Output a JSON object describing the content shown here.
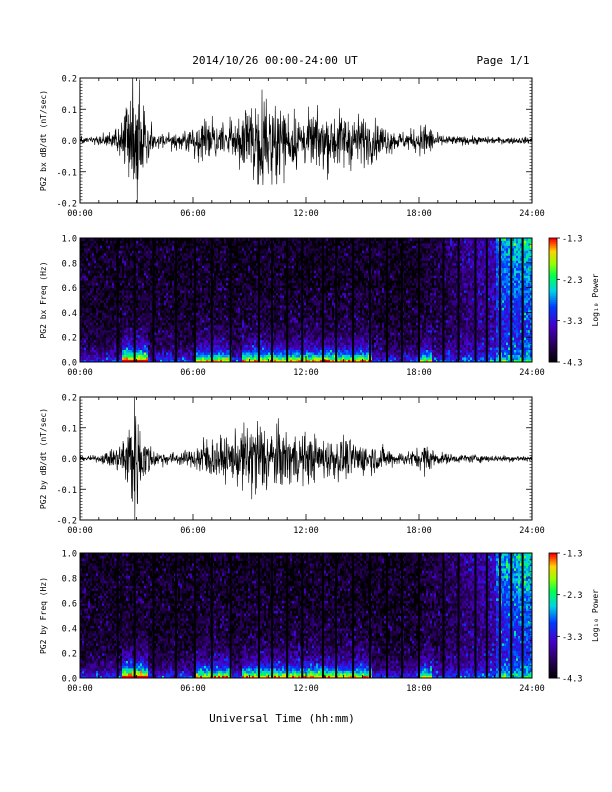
{
  "header": {
    "title": "2014/10/26  00:00-24:00 UT",
    "page": "Page 1/1"
  },
  "footer": {
    "xlabel": "Universal Time (hh:mm)"
  },
  "chart_data": [
    {
      "type": "line",
      "ylabel": "PG2 bx dB/dt (nT/sec)",
      "xlim_hours": [
        0,
        24
      ],
      "ylim": [
        -0.2,
        0.2
      ],
      "x_ticks": [
        "00:00",
        "06:00",
        "12:00",
        "18:00",
        "24:00"
      ],
      "y_ticks": [
        "-0.2",
        "-0.1",
        "0.0",
        "0.1",
        "0.2"
      ],
      "envelope": {
        "hours": [
          0,
          1,
          2,
          2.5,
          2.8,
          3.0,
          3.3,
          4,
          5,
          6,
          6.5,
          7,
          8,
          9,
          9.5,
          10,
          11,
          12,
          13,
          14,
          15,
          16,
          17,
          18,
          18.3,
          19,
          20,
          21,
          22,
          23,
          24
        ],
        "amplitude": [
          0.008,
          0.01,
          0.03,
          0.08,
          0.22,
          0.22,
          0.1,
          0.02,
          0.02,
          0.03,
          0.05,
          0.04,
          0.05,
          0.09,
          0.1,
          0.09,
          0.08,
          0.06,
          0.07,
          0.07,
          0.06,
          0.04,
          0.02,
          0.03,
          0.05,
          0.015,
          0.01,
          0.01,
          0.008,
          0.008,
          0.008
        ]
      }
    },
    {
      "type": "heatmap",
      "ylabel": "PG2 bx Freq (Hz)",
      "xlim_hours": [
        0,
        24
      ],
      "ylim": [
        0,
        1.0
      ],
      "x_ticks": [
        "00:00",
        "06:00",
        "12:00",
        "18:00",
        "24:00"
      ],
      "y_ticks": [
        "0.0",
        "0.2",
        "0.4",
        "0.6",
        "0.8",
        "1.0"
      ],
      "colorbar": {
        "label": "Log₁₀ Power",
        "min": -4.3,
        "max": -1.3,
        "ticks": [
          "-1.3",
          "-2.3",
          "-3.3",
          "-4.3"
        ]
      },
      "gap_hours": [
        2.0,
        2.9,
        3.9,
        5.1,
        6.1,
        7.0,
        8.0,
        9.5,
        10.2,
        11.0,
        11.8,
        12.9,
        13.6,
        14.5,
        15.4,
        16.3,
        17.1,
        18.0,
        19.3,
        20.1,
        21.0,
        21.6,
        22.3,
        22.9,
        23.5
      ]
    },
    {
      "type": "line",
      "ylabel": "PG2 by dB/dt (nT/sec)",
      "xlim_hours": [
        0,
        24
      ],
      "ylim": [
        -0.2,
        0.2
      ],
      "x_ticks": [
        "00:00",
        "06:00",
        "12:00",
        "18:00",
        "24:00"
      ],
      "y_ticks": [
        "-0.2",
        "-0.1",
        "0.0",
        "0.1",
        "0.2"
      ],
      "envelope": {
        "hours": [
          0,
          1,
          2,
          2.5,
          2.8,
          3.0,
          3.3,
          4,
          5,
          6,
          6.5,
          7,
          8,
          9,
          9.5,
          10,
          11,
          12,
          13,
          14,
          15,
          16,
          17,
          18,
          18.3,
          19,
          20,
          21,
          22,
          23,
          24
        ],
        "amplitude": [
          0.005,
          0.008,
          0.03,
          0.08,
          0.15,
          0.15,
          0.06,
          0.02,
          0.015,
          0.02,
          0.06,
          0.05,
          0.05,
          0.09,
          0.11,
          0.08,
          0.07,
          0.06,
          0.05,
          0.05,
          0.04,
          0.03,
          0.015,
          0.025,
          0.04,
          0.015,
          0.01,
          0.01,
          0.008,
          0.008,
          0.008
        ]
      }
    },
    {
      "type": "heatmap",
      "ylabel": "PG2 by Freq (Hz)",
      "xlim_hours": [
        0,
        24
      ],
      "ylim": [
        0,
        1.0
      ],
      "x_ticks": [
        "00:00",
        "06:00",
        "12:00",
        "18:00",
        "24:00"
      ],
      "y_ticks": [
        "0.0",
        "0.2",
        "0.4",
        "0.6",
        "0.8",
        "1.0"
      ],
      "colorbar": {
        "label": "Log₁₀ Power",
        "min": -4.3,
        "max": -1.3,
        "ticks": [
          "-1.3",
          "-2.3",
          "-3.3",
          "-4.3"
        ]
      },
      "gap_hours": [
        2.0,
        2.9,
        3.9,
        5.1,
        6.1,
        7.0,
        8.0,
        9.5,
        10.2,
        11.0,
        11.8,
        12.9,
        13.6,
        14.5,
        15.4,
        16.3,
        17.1,
        18.0,
        19.3,
        20.1,
        21.0,
        21.6,
        22.3,
        22.9,
        23.5
      ]
    }
  ]
}
